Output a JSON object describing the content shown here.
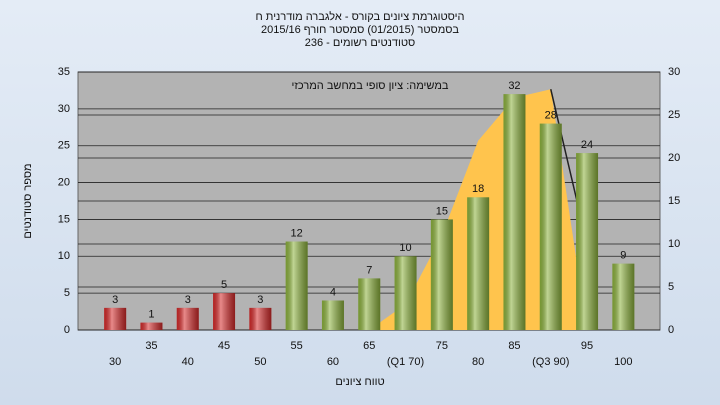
{
  "chart_data": {
    "type": "bar",
    "title": [
      "היסטוגרמת ציונים בקורס - אלגברה מודרנית ח",
      "בסמסטר  (01/2015)  סמסטר חורף 2015/16",
      "סטודנטים רשומים - 236"
    ],
    "annotation": "במשימה: ציון סופי במחשב המרכזי",
    "x_label": "טווח ציונים",
    "y_label": "מספר סטודנטים",
    "categories": [
      "30",
      "35",
      "40",
      "45",
      "50",
      "55",
      "60",
      "65",
      "(Q1 70)",
      "75",
      "80",
      "85",
      "(Q3 90)",
      "95",
      "100"
    ],
    "series": [
      {
        "values": [
          3,
          1,
          3,
          5,
          3,
          12,
          4,
          7,
          10,
          15,
          18,
          32,
          28,
          24,
          9
        ],
        "colors": [
          "#d62a2a",
          "#d62a2a",
          "#d62a2a",
          "#d62a2a",
          "#d62a2a",
          "#8db33d",
          "#8db33d",
          "#8db33d",
          "#8db33d",
          "#8db33d",
          "#8db33d",
          "#8db33d",
          "#8db33d",
          "#8db33d",
          "#8db33d"
        ]
      },
      {
        "type": "area",
        "axis": "y2",
        "color": "#ffc44d",
        "values": [
          null,
          null,
          null,
          null,
          null,
          null,
          null,
          0,
          3,
          11,
          22,
          27,
          28,
          0,
          null
        ]
      },
      {
        "type": "line",
        "axis": "y2",
        "color": "#222222",
        "values": [
          null,
          null,
          null,
          null,
          null,
          null,
          null,
          null,
          null,
          null,
          null,
          null,
          28,
          10,
          null
        ]
      }
    ],
    "ylim": [
      0,
      35
    ],
    "yticks": [
      0,
      5,
      10,
      15,
      20,
      25,
      30,
      35
    ],
    "y2lim": [
      0,
      30
    ],
    "y2ticks": [
      0,
      5,
      10,
      15,
      20,
      25,
      30
    ],
    "grid": true
  }
}
